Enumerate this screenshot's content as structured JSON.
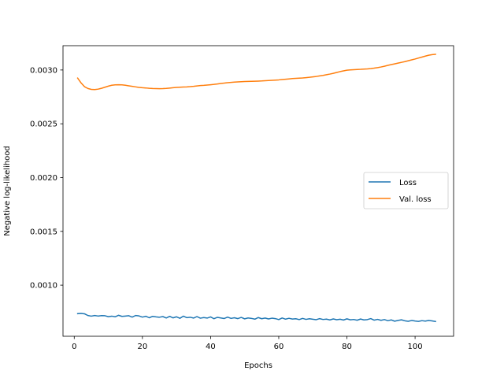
{
  "chart_data": {
    "type": "line",
    "title": "",
    "xlabel": "Epochs",
    "ylabel": "Negative log-likelihood",
    "xlim": [
      -3.3,
      111.3
    ],
    "ylim": [
      0.000525,
      0.003226
    ],
    "xticks": [
      0,
      20,
      40,
      60,
      80,
      100
    ],
    "xtick_labels": [
      "0",
      "20",
      "40",
      "60",
      "80",
      "100"
    ],
    "yticks": [
      0.001,
      0.0015,
      0.002,
      0.0025,
      0.003
    ],
    "ytick_labels": [
      "0.0010",
      "0.0015",
      "0.0020",
      "0.0025",
      "0.0030"
    ],
    "grid": false,
    "legend_position": "center-right",
    "series": [
      {
        "name": "Loss",
        "color": "#1f77b4",
        "points": [
          [
            1,
            0.000735
          ],
          [
            2,
            0.000737
          ],
          [
            3,
            0.000734
          ],
          [
            4,
            0.000718
          ],
          [
            5,
            0.000712
          ],
          [
            6,
            0.000718
          ],
          [
            7,
            0.000713
          ],
          [
            8,
            0.000717
          ],
          [
            9,
            0.000716
          ],
          [
            10,
            0.000707
          ],
          [
            11,
            0.000712
          ],
          [
            12,
            0.000706
          ],
          [
            13,
            0.00072
          ],
          [
            14,
            0.00071
          ],
          [
            15,
            0.000713
          ],
          [
            16,
            0.000716
          ],
          [
            17,
            0.000703
          ],
          [
            18,
            0.000718
          ],
          [
            19,
            0.000714
          ],
          [
            20,
            0.000703
          ],
          [
            21,
            0.000711
          ],
          [
            22,
            0.000697
          ],
          [
            23,
            0.00071
          ],
          [
            24,
            0.000705
          ],
          [
            25,
            0.000702
          ],
          [
            26,
            0.000708
          ],
          [
            27,
            0.000695
          ],
          [
            28,
            0.00071
          ],
          [
            29,
            0.000696
          ],
          [
            30,
            0.000706
          ],
          [
            31,
            0.000692
          ],
          [
            32,
            0.000712
          ],
          [
            33,
            0.000698
          ],
          [
            34,
            0.000702
          ],
          [
            35,
            0.000694
          ],
          [
            36,
            0.000708
          ],
          [
            37,
            0.000693
          ],
          [
            38,
            0.000699
          ],
          [
            39,
            0.000694
          ],
          [
            40,
            0.000705
          ],
          [
            41,
            0.000688
          ],
          [
            42,
            0.000701
          ],
          [
            43,
            0.000695
          ],
          [
            44,
            0.00069
          ],
          [
            45,
            0.000703
          ],
          [
            46,
            0.000691
          ],
          [
            47,
            0.000697
          ],
          [
            48,
            0.000689
          ],
          [
            49,
            0.0007
          ],
          [
            50,
            0.000687
          ],
          [
            51,
            0.000695
          ],
          [
            52,
            0.000691
          ],
          [
            53,
            0.000684
          ],
          [
            54,
            0.000699
          ],
          [
            55,
            0.000688
          ],
          [
            56,
            0.000694
          ],
          [
            57,
            0.000686
          ],
          [
            58,
            0.000693
          ],
          [
            59,
            0.000689
          ],
          [
            60,
            0.00068
          ],
          [
            61,
            0.000695
          ],
          [
            62,
            0.000684
          ],
          [
            63,
            0.000692
          ],
          [
            64,
            0.000685
          ],
          [
            65,
            0.000688
          ],
          [
            66,
            0.00068
          ],
          [
            67,
            0.000691
          ],
          [
            68,
            0.000682
          ],
          [
            69,
            0.000688
          ],
          [
            70,
            0.000683
          ],
          [
            71,
            0.000679
          ],
          [
            72,
            0.000689
          ],
          [
            73,
            0.000681
          ],
          [
            74,
            0.000684
          ],
          [
            75,
            0.000677
          ],
          [
            76,
            0.000686
          ],
          [
            77,
            0.000679
          ],
          [
            78,
            0.000683
          ],
          [
            79,
            0.000676
          ],
          [
            80,
            0.000687
          ],
          [
            81,
            0.000678
          ],
          [
            82,
            0.000681
          ],
          [
            83,
            0.000674
          ],
          [
            84,
            0.000685
          ],
          [
            85,
            0.000677
          ],
          [
            86,
            0.00068
          ],
          [
            87,
            0.000689
          ],
          [
            88,
            0.000675
          ],
          [
            89,
            0.000682
          ],
          [
            90,
            0.000673
          ],
          [
            91,
            0.00068
          ],
          [
            92,
            0.00067
          ],
          [
            93,
            0.000677
          ],
          [
            94,
            0.000665
          ],
          [
            95,
            0.000672
          ],
          [
            96,
            0.000678
          ],
          [
            97,
            0.000669
          ],
          [
            98,
            0.000664
          ],
          [
            99,
            0.000672
          ],
          [
            100,
            0.000667
          ],
          [
            101,
            0.000663
          ],
          [
            102,
            0.00067
          ],
          [
            103,
            0.000666
          ],
          [
            104,
            0.000672
          ],
          [
            105,
            0.000668
          ],
          [
            106,
            0.000662
          ]
        ]
      },
      {
        "name": "Val. loss",
        "color": "#ff7f0e",
        "points": [
          [
            1,
            0.002925
          ],
          [
            2,
            0.00288
          ],
          [
            3,
            0.002845
          ],
          [
            4,
            0.002828
          ],
          [
            5,
            0.00282
          ],
          [
            6,
            0.002818
          ],
          [
            7,
            0.002822
          ],
          [
            8,
            0.00283
          ],
          [
            9,
            0.00284
          ],
          [
            10,
            0.00285
          ],
          [
            11,
            0.002858
          ],
          [
            12,
            0.002862
          ],
          [
            13,
            0.002863
          ],
          [
            14,
            0.002862
          ],
          [
            15,
            0.002858
          ],
          [
            16,
            0.002853
          ],
          [
            17,
            0.002848
          ],
          [
            18,
            0.002843
          ],
          [
            19,
            0.002838
          ],
          [
            20,
            0.002835
          ],
          [
            21,
            0.002833
          ],
          [
            22,
            0.00283
          ],
          [
            23,
            0.002828
          ],
          [
            24,
            0.002827
          ],
          [
            25,
            0.002826
          ],
          [
            26,
            0.002827
          ],
          [
            27,
            0.002829
          ],
          [
            28,
            0.002832
          ],
          [
            29,
            0.002835
          ],
          [
            30,
            0.002838
          ],
          [
            31,
            0.00284
          ],
          [
            32,
            0.002842
          ],
          [
            33,
            0.002843
          ],
          [
            34,
            0.002845
          ],
          [
            35,
            0.002848
          ],
          [
            36,
            0.002852
          ],
          [
            37,
            0.002855
          ],
          [
            38,
            0.002857
          ],
          [
            39,
            0.00286
          ],
          [
            40,
            0.002863
          ],
          [
            41,
            0.002866
          ],
          [
            42,
            0.00287
          ],
          [
            43,
            0.002875
          ],
          [
            44,
            0.002878
          ],
          [
            45,
            0.002882
          ],
          [
            46,
            0.002885
          ],
          [
            47,
            0.002887
          ],
          [
            48,
            0.002889
          ],
          [
            49,
            0.002891
          ],
          [
            50,
            0.002893
          ],
          [
            51,
            0.002894
          ],
          [
            52,
            0.002895
          ],
          [
            53,
            0.002896
          ],
          [
            54,
            0.002897
          ],
          [
            55,
            0.002898
          ],
          [
            56,
            0.0029
          ],
          [
            57,
            0.002902
          ],
          [
            58,
            0.002904
          ],
          [
            59,
            0.002906
          ],
          [
            60,
            0.002908
          ],
          [
            61,
            0.002911
          ],
          [
            62,
            0.002914
          ],
          [
            63,
            0.002917
          ],
          [
            64,
            0.00292
          ],
          [
            65,
            0.002922
          ],
          [
            66,
            0.002924
          ],
          [
            67,
            0.002926
          ],
          [
            68,
            0.002929
          ],
          [
            69,
            0.002932
          ],
          [
            70,
            0.002936
          ],
          [
            71,
            0.00294
          ],
          [
            72,
            0.002945
          ],
          [
            73,
            0.00295
          ],
          [
            74,
            0.002956
          ],
          [
            75,
            0.002962
          ],
          [
            76,
            0.002969
          ],
          [
            77,
            0.002977
          ],
          [
            78,
            0.002985
          ],
          [
            79,
            0.002992
          ],
          [
            80,
            0.002998
          ],
          [
            81,
            0.003001
          ],
          [
            82,
            0.003003
          ],
          [
            83,
            0.003005
          ],
          [
            84,
            0.003006
          ],
          [
            85,
            0.003008
          ],
          [
            86,
            0.00301
          ],
          [
            87,
            0.003013
          ],
          [
            88,
            0.003017
          ],
          [
            89,
            0.003022
          ],
          [
            90,
            0.003028
          ],
          [
            91,
            0.003035
          ],
          [
            92,
            0.003043
          ],
          [
            93,
            0.00305
          ],
          [
            94,
            0.003057
          ],
          [
            95,
            0.003064
          ],
          [
            96,
            0.003071
          ],
          [
            97,
            0.003078
          ],
          [
            98,
            0.003086
          ],
          [
            99,
            0.003094
          ],
          [
            100,
            0.003102
          ],
          [
            101,
            0.003111
          ],
          [
            102,
            0.00312
          ],
          [
            103,
            0.003129
          ],
          [
            104,
            0.003137
          ],
          [
            105,
            0.003143
          ],
          [
            106,
            0.003146
          ]
        ]
      }
    ]
  }
}
